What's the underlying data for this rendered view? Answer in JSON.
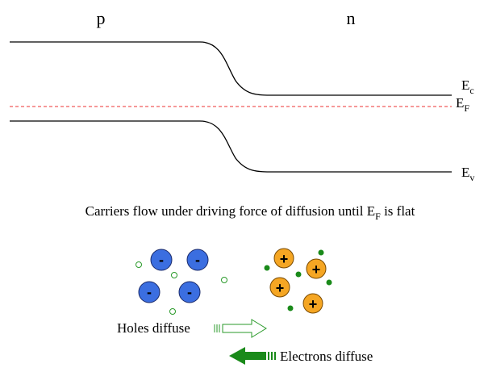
{
  "labels": {
    "p": "p",
    "n": "n"
  },
  "band_labels": [
    {
      "main": "E",
      "sub": "c"
    },
    {
      "main": "E",
      "sub": "F"
    },
    {
      "main": "E",
      "sub": "v"
    }
  ],
  "caption": {
    "before": "Carriers flow under driving force of diffusion until ",
    "main": "E",
    "sub": "F",
    "after": " is flat"
  },
  "electron_signs": [
    "-",
    "-",
    "-",
    "-"
  ],
  "ion_signs": [
    "+",
    "+",
    "+",
    "+"
  ],
  "holes_text": "Holes diffuse",
  "electrons_text": "Electrons diffuse"
}
